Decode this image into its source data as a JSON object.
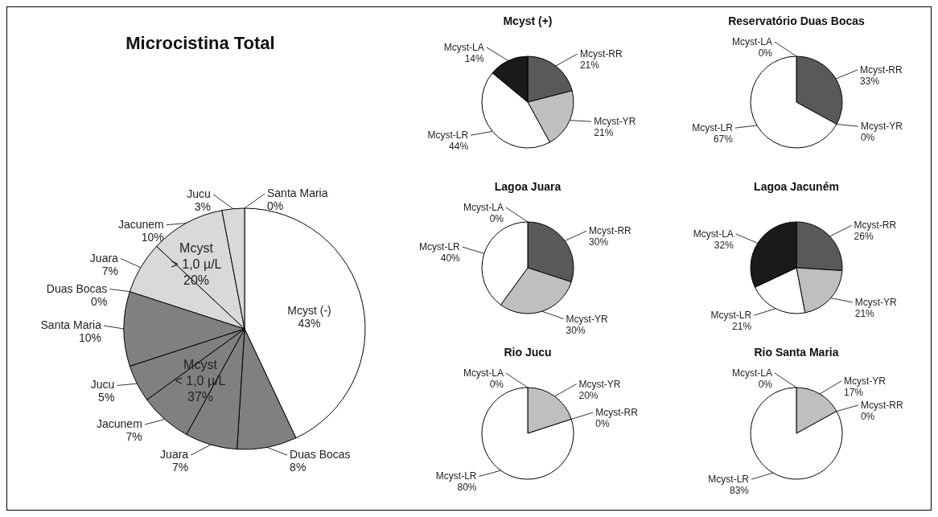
{
  "chart_data": [
    {
      "type": "pie",
      "title": "Microcistina Total",
      "categories": [
        "Mcyst (-)",
        "Duas Bocas",
        "Juara",
        "Jacunem",
        "Jucu",
        "Santa Maria",
        "Duas Bocas",
        "Juara",
        "Jacunem",
        "Jucu",
        "Santa Maria"
      ],
      "values": [
        43,
        8,
        7,
        7,
        5,
        10,
        0,
        7,
        10,
        3,
        0
      ],
      "colors": [
        "#ffffff",
        "#808080",
        "#808080",
        "#808080",
        "#808080",
        "#808080",
        "#d9d9d9",
        "#d9d9d9",
        "#d9d9d9",
        "#d9d9d9",
        "#d9d9d9"
      ],
      "value_labels": [
        "43%",
        "8%",
        "7%",
        "7%",
        "5%",
        "10%",
        "0%",
        "7%",
        "10%",
        "3%",
        "0%"
      ],
      "annotations": [
        "Mcyst\n< 1,0 µ/L\n37%",
        "Mcyst\n> 1,0 µ/L\n20%"
      ]
    },
    {
      "type": "pie",
      "title": "Mcyst (+)",
      "categories": [
        "Mcyst-RR",
        "Mcyst-YR",
        "Mcyst-LR",
        "Mcyst-LA"
      ],
      "values": [
        21,
        21,
        44,
        14
      ],
      "colors": [
        "#595959",
        "#bfbfbf",
        "#ffffff",
        "#1a1a1a"
      ],
      "value_labels": [
        "21%",
        "21%",
        "44%",
        "14%"
      ]
    },
    {
      "type": "pie",
      "title": "Reservatório Duas Bocas",
      "categories": [
        "Mcyst-RR",
        "Mcyst-YR",
        "Mcyst-LR",
        "Mcyst-LA"
      ],
      "values": [
        33,
        0,
        67,
        0
      ],
      "colors": [
        "#595959",
        "#bfbfbf",
        "#ffffff",
        "#1a1a1a"
      ],
      "value_labels": [
        "33%",
        "0%",
        "67%",
        "0%"
      ]
    },
    {
      "type": "pie",
      "title": "Lagoa Juara",
      "categories": [
        "Mcyst-RR",
        "Mcyst-YR",
        "Mcyst-LR",
        "Mcyst-LA"
      ],
      "values": [
        30,
        30,
        40,
        0
      ],
      "colors": [
        "#595959",
        "#bfbfbf",
        "#ffffff",
        "#1a1a1a"
      ],
      "value_labels": [
        "30%",
        "30%",
        "40%",
        "0%"
      ]
    },
    {
      "type": "pie",
      "title": "Lagoa Jacuném",
      "categories": [
        "Mcyst-RR",
        "Mcyst-YR",
        "Mcyst-LR",
        "Mcyst-LA"
      ],
      "values": [
        26,
        21,
        21,
        32
      ],
      "colors": [
        "#595959",
        "#bfbfbf",
        "#ffffff",
        "#1a1a1a"
      ],
      "value_labels": [
        "26%",
        "21%",
        "21%",
        "32%"
      ]
    },
    {
      "type": "pie",
      "title": "Rio Jucu",
      "categories": [
        "Mcyst-YR",
        "Mcyst-RR",
        "Mcyst-LR",
        "Mcyst-LA"
      ],
      "values": [
        20,
        0,
        80,
        0
      ],
      "colors": [
        "#bfbfbf",
        "#595959",
        "#ffffff",
        "#1a1a1a"
      ],
      "value_labels": [
        "20%",
        "0%",
        "80%",
        "0%"
      ]
    },
    {
      "type": "pie",
      "title": "Rio Santa Maria",
      "categories": [
        "Mcyst-YR",
        "Mcyst-RR",
        "Mcyst-LR",
        "Mcyst-LA"
      ],
      "values": [
        17,
        0,
        83,
        0
      ],
      "colors": [
        "#bfbfbf",
        "#595959",
        "#ffffff",
        "#1a1a1a"
      ],
      "value_labels": [
        "17%",
        "0%",
        "83%",
        "0%"
      ]
    }
  ]
}
